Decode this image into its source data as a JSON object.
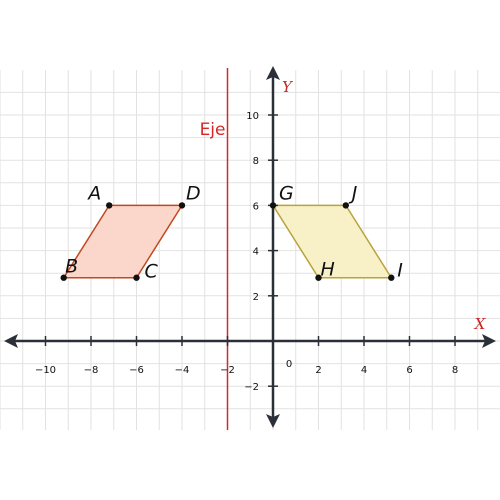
{
  "axes": {
    "x_label": "X",
    "y_label": "Y",
    "origin_label": "0",
    "x_ticks": [
      -10,
      -8,
      -6,
      -4,
      -2,
      2,
      4,
      6,
      8
    ],
    "x_tick_labels": [
      "−10",
      "−8",
      "−6",
      "−4",
      "−2",
      "2",
      "4",
      "6",
      "8"
    ],
    "y_ticks": [
      -2,
      2,
      4,
      6,
      8,
      10
    ],
    "y_tick_labels": [
      "−2",
      "2",
      "4",
      "6",
      "8",
      "10"
    ],
    "grid": true
  },
  "mirror_line": {
    "label": "Eje",
    "x": -2
  },
  "shapes": [
    {
      "name": "shape-abcd",
      "vertices": [
        {
          "label": "A",
          "x": -7.2,
          "y": 6
        },
        {
          "label": "D",
          "x": -4,
          "y": 6
        },
        {
          "label": "C",
          "x": -6,
          "y": 2.8
        },
        {
          "label": "B",
          "x": -9.2,
          "y": 2.8
        }
      ],
      "fill": "#fbd6cb",
      "stroke": "#c0491f"
    },
    {
      "name": "shape-gjih",
      "vertices": [
        {
          "label": "G",
          "x": 0,
          "y": 6
        },
        {
          "label": "J",
          "x": 3.2,
          "y": 6
        },
        {
          "label": "I",
          "x": 5.2,
          "y": 2.8
        },
        {
          "label": "H",
          "x": 2,
          "y": 2.8
        }
      ],
      "fill": "#f8f0c6",
      "stroke": "#b8a33c"
    }
  ],
  "colors": {
    "mirror": "#d62828",
    "axis": "#2b3038",
    "axis_name": "#c62828",
    "grid": "#e2e2e2"
  }
}
